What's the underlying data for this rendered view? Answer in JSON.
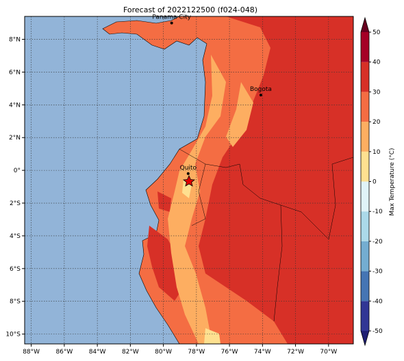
{
  "map": {
    "title": "Forecast of 2022122500 (f024-048)",
    "xlim": [
      -88.4,
      -68.5
    ],
    "ylim": [
      -10.6,
      9.4
    ],
    "xticks": [
      {
        "value": -88,
        "label": "88°W"
      },
      {
        "value": -86,
        "label": "86°W"
      },
      {
        "value": -84,
        "label": "84°W"
      },
      {
        "value": -82,
        "label": "82°W"
      },
      {
        "value": -80,
        "label": "80°W"
      },
      {
        "value": -78,
        "label": "78°W"
      },
      {
        "value": -76,
        "label": "76°W"
      },
      {
        "value": -74,
        "label": "74°W"
      },
      {
        "value": -72,
        "label": "72°W"
      },
      {
        "value": -70,
        "label": "70°W"
      }
    ],
    "yticks": [
      {
        "value": 8,
        "label": "8°N"
      },
      {
        "value": 6,
        "label": "6°N"
      },
      {
        "value": 4,
        "label": "4°N"
      },
      {
        "value": 2,
        "label": "2°N"
      },
      {
        "value": 0,
        "label": "0°"
      },
      {
        "value": -2,
        "label": "2°S"
      },
      {
        "value": -4,
        "label": "4°S"
      },
      {
        "value": -6,
        "label": "6°S"
      },
      {
        "value": -8,
        "label": "8°S"
      },
      {
        "value": -10,
        "label": "10°S"
      }
    ],
    "grid": true,
    "places": [
      {
        "name": "Panama City",
        "lon": -79.5,
        "lat": 9.0
      },
      {
        "name": "Bogota",
        "lon": -74.1,
        "lat": 4.6
      },
      {
        "name": "Quito",
        "lon": -78.5,
        "lat": -0.2
      }
    ],
    "colorbar": {
      "label": "Max Temperature (°C)",
      "lim": [
        -50,
        50
      ],
      "ticks": [
        -50,
        -40,
        -30,
        -20,
        -10,
        0,
        10,
        20,
        30,
        40,
        50
      ],
      "colors": [
        "#313695",
        "#4575b4",
        "#74add1",
        "#abd9e9",
        "#e0f3f8",
        "#fee090",
        "#fdae61",
        "#f46d43",
        "#d73027",
        "#a50026"
      ],
      "extend_colors": [
        "#1f1f73",
        "#67001f"
      ]
    }
  }
}
